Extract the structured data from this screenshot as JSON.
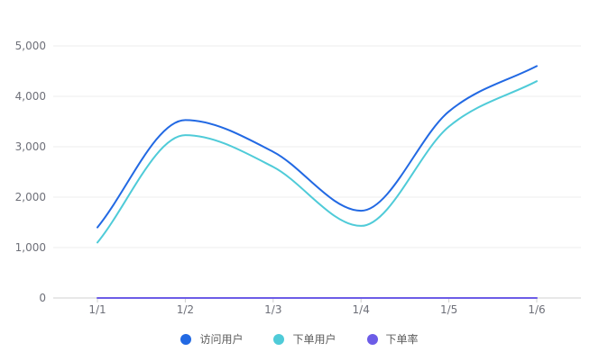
{
  "chart_data": {
    "type": "line",
    "categories": [
      "1/1",
      "1/2",
      "1/3",
      "1/4",
      "1/5",
      "1/6"
    ],
    "y_ticks": [
      "0",
      "1,000",
      "2,000",
      "3,000",
      "4,000",
      "5,000"
    ],
    "ylim": [
      0,
      5000
    ],
    "grid": true,
    "legend_position": "bottom",
    "series": [
      {
        "name": "访问用户",
        "values": [
          1400,
          3530,
          2900,
          1730,
          3700,
          4600
        ],
        "color": "#2269e3"
      },
      {
        "name": "下单用户",
        "values": [
          1100,
          3230,
          2600,
          1430,
          3400,
          4300
        ],
        "color": "#4fcbd8"
      },
      {
        "name": "下单率",
        "values": [
          0,
          0,
          0,
          0,
          0,
          0
        ],
        "color": "#6c5ce7"
      }
    ]
  }
}
